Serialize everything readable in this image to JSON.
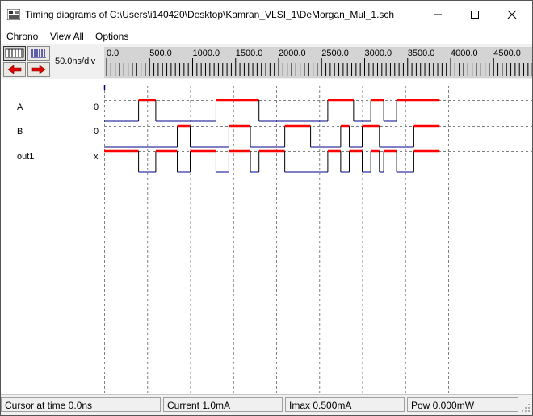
{
  "window": {
    "title": "Timing diagrams of C:\\Users\\i140420\\Desktop\\Kamran_VLSI_1\\DeMorgan_Mul_1.sch"
  },
  "menu": [
    "Chrono",
    "View All",
    "Options"
  ],
  "toolbar": {
    "scale": "50.0ns/div"
  },
  "ruler": {
    "ticks": [
      "0.0",
      "500.0",
      "1000.0",
      "1500.0",
      "2000.0",
      "2500.0",
      "3000.0",
      "3500.0",
      "4000.0",
      "4500.0"
    ]
  },
  "signals": [
    {
      "name": "A",
      "value": "0",
      "edges": [
        0,
        400,
        600,
        1300,
        1800,
        2600,
        2900,
        3100,
        3250,
        3400,
        3900
      ],
      "start": 0
    },
    {
      "name": "B",
      "value": "0",
      "edges": [
        0,
        850,
        1000,
        1450,
        1700,
        2100,
        2400,
        2750,
        2850,
        3000,
        3200,
        3600,
        3900
      ],
      "start": 0
    },
    {
      "name": "out1",
      "value": "x",
      "edges": [
        0,
        400,
        600,
        850,
        1000,
        1300,
        1450,
        1700,
        1800,
        2100,
        2600,
        2750,
        2850,
        3000,
        3100,
        3200,
        3250,
        3400,
        3600,
        3900
      ],
      "start": 1
    }
  ],
  "status": {
    "cursor": "Cursor at time  0.0ns",
    "current": "Current  1.0mA",
    "imax": "Imax 0.500mA",
    "power": "Pow 0.000mW"
  },
  "colors": {
    "high": "#ff0000",
    "low": "#00008b",
    "grid": "#808080",
    "ruler_bg": "#d4d4d4"
  }
}
